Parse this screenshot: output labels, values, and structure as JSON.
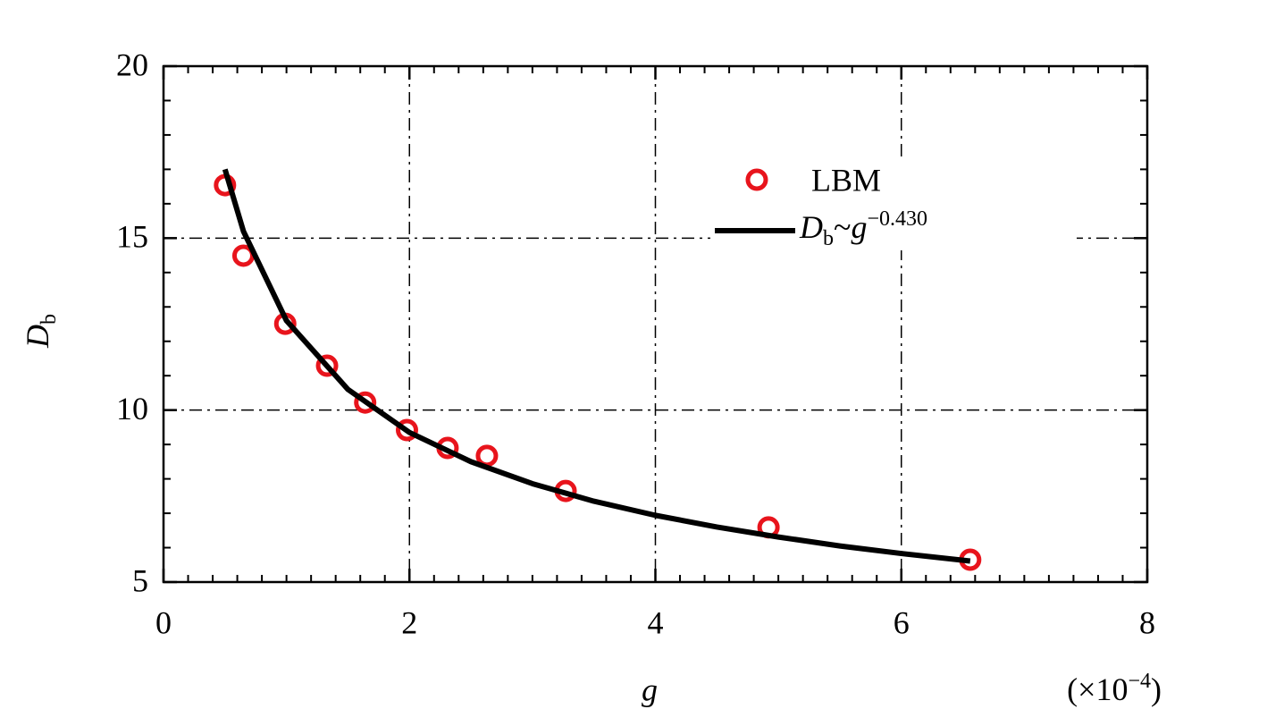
{
  "chart_data": {
    "type": "scatter",
    "xlabel": "g",
    "xlabel_scale": "(×10−4)",
    "ylabel": "Db",
    "xlim": [
      0,
      8
    ],
    "xticks": [
      0,
      2,
      4,
      6,
      8
    ],
    "ylim": [
      5,
      20
    ],
    "yticks": [
      5,
      10,
      15,
      20
    ],
    "grid": true,
    "grid_style": "dash-dot",
    "legend": "upper right",
    "series": [
      {
        "name": "LBM",
        "type": "scatter",
        "color": "#e8141c",
        "x": [
          0.5,
          0.65,
          0.99,
          1.33,
          1.64,
          1.98,
          2.31,
          2.63,
          3.27,
          4.92,
          6.56
        ],
        "values": [
          16.54,
          14.49,
          12.51,
          11.29,
          10.22,
          9.42,
          8.9,
          8.67,
          7.65,
          6.59,
          5.65
        ]
      },
      {
        "name": "Db~g−0.430",
        "type": "line",
        "color": "#000000",
        "x": [
          0.5,
          0.65,
          1,
          1.5,
          2,
          2.5,
          3,
          3.5,
          4,
          4.5,
          5,
          5.5,
          6,
          6.56
        ],
        "values": [
          17.0,
          15.2,
          12.6,
          10.6,
          9.35,
          8.5,
          7.86,
          7.35,
          6.94,
          6.6,
          6.31,
          6.05,
          5.83,
          5.61
        ]
      }
    ]
  }
}
